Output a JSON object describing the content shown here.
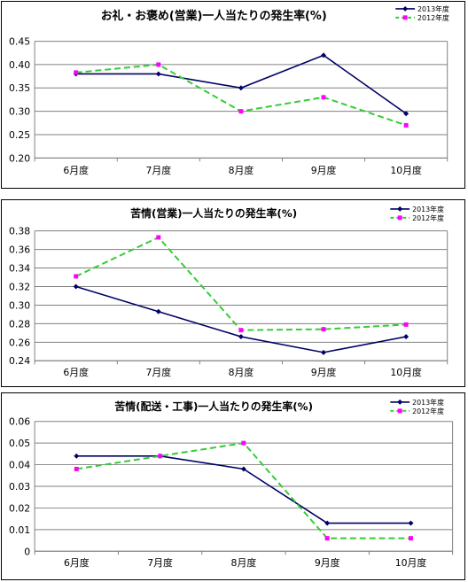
{
  "colors": {
    "series_2013": "#000066",
    "series_2012": "#33cc33",
    "marker_2012": "#ff00ff",
    "axis": "#808080"
  },
  "chart_data": [
    {
      "type": "line",
      "title": "お礼・お褒め(営業)一人当たりの発生率(%)",
      "categories": [
        "6月度",
        "7月度",
        "8月度",
        "9月度",
        "10月度"
      ],
      "yticks": [
        "0.20",
        "0.25",
        "0.30",
        "0.35",
        "0.40",
        "0.45"
      ],
      "ylim": [
        0.2,
        0.45
      ],
      "legend_position": "top-right",
      "series": [
        {
          "name": "2013年度",
          "values": [
            0.38,
            0.38,
            0.35,
            0.42,
            0.295
          ]
        },
        {
          "name": "2012年度",
          "values": [
            0.383,
            0.4,
            0.3,
            0.33,
            0.27
          ]
        }
      ]
    },
    {
      "type": "line",
      "title": "苦情(営業)一人当たりの発生率(%)",
      "categories": [
        "6月度",
        "7月度",
        "8月度",
        "9月度",
        "10月度"
      ],
      "yticks": [
        "0.24",
        "0.26",
        "0.28",
        "0.30",
        "0.32",
        "0.34",
        "0.36",
        "0.38"
      ],
      "ylim": [
        0.24,
        0.38
      ],
      "legend_position": "top-right",
      "series": [
        {
          "name": "2013年度",
          "values": [
            0.32,
            0.293,
            0.266,
            0.249,
            0.266
          ]
        },
        {
          "name": "2012年度",
          "values": [
            0.331,
            0.373,
            0.273,
            0.274,
            0.279
          ]
        }
      ]
    },
    {
      "type": "line",
      "title": "苦情(配送・工事)一人当たりの発生率(%)",
      "categories": [
        "6月度",
        "7月度",
        "8月度",
        "9月度",
        "10月度"
      ],
      "yticks": [
        "0",
        "0.01",
        "0.02",
        "0.03",
        "0.04",
        "0.05",
        "0.06"
      ],
      "ylim": [
        0,
        0.06
      ],
      "legend_position": "top-right",
      "series": [
        {
          "name": "2013年度",
          "values": [
            0.044,
            0.044,
            0.038,
            0.013,
            0.013
          ]
        },
        {
          "name": "2012年度",
          "values": [
            0.038,
            0.044,
            0.05,
            0.006,
            0.006
          ]
        }
      ]
    }
  ]
}
